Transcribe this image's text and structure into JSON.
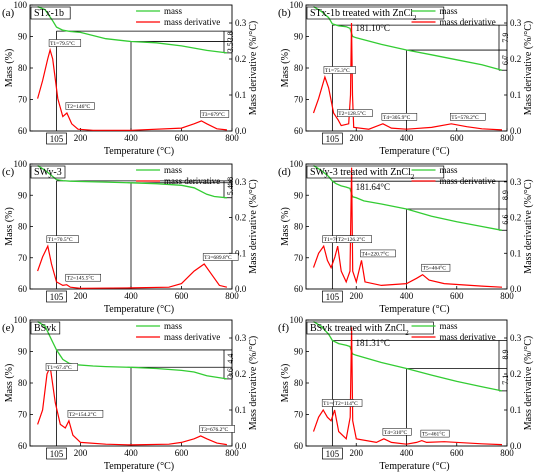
{
  "figure": {
    "x_label": "Temperature (°C)",
    "y_left_label": "Mass (%)",
    "y_right_label": "Mass derivative (%/°C)",
    "colors": {
      "mass": "#33cc33",
      "derivative": "#ff0000",
      "frame": "#000000"
    }
  },
  "chart_data": [
    {
      "id": "a",
      "panel_label": "(a)",
      "sample": "STx-1b",
      "sample_treatment": "",
      "type": "line",
      "legend": [
        "mass",
        "mass derivative"
      ],
      "xlim": [
        0,
        800
      ],
      "x_ticks": [
        200,
        400,
        600,
        800
      ],
      "ylim_left": [
        60,
        100
      ],
      "y_ticks_left": [
        60,
        70,
        80,
        90,
        100
      ],
      "ylim_right": [
        0.0,
        0.35
      ],
      "y_ticks_right": [
        0.0,
        0.1,
        0.2,
        0.3
      ],
      "mass": {
        "x": [
          30,
          60,
          90,
          105,
          130,
          160,
          200,
          300,
          400,
          500,
          600,
          700,
          780
        ],
        "y": [
          99.5,
          98.5,
          95,
          93,
          92,
          91.6,
          91.3,
          89.3,
          88.4,
          88.0,
          87.0,
          85.6,
          84.8
        ]
      },
      "derivative": {
        "x": [
          30,
          50,
          70,
          79.5,
          90,
          110,
          130,
          146,
          165,
          190,
          250,
          400,
          600,
          650,
          679,
          700,
          740,
          780
        ],
        "y": [
          0.09,
          0.14,
          0.2,
          0.225,
          0.2,
          0.09,
          0.04,
          0.05,
          0.02,
          0.005,
          0.002,
          0.002,
          0.008,
          0.02,
          0.028,
          0.02,
          0.006,
          0.003
        ]
      },
      "guides": {
        "x_start": 105,
        "x_mid": 400,
        "y_top": 91.7,
        "y_mid": 88.4,
        "y_bottom": 84.8
      },
      "callouts": [
        "3.8",
        "3.5"
      ],
      "markers": [
        {
          "label": "T1=79.5°C",
          "x": 79.5,
          "y": 0.225
        },
        {
          "label": "T2=146°C",
          "x": 146,
          "y": 0.05
        },
        {
          "label": "T3=679°C",
          "x": 679,
          "y": 0.028
        }
      ],
      "peak_label": "",
      "start_tick": "105"
    },
    {
      "id": "b",
      "panel_label": "(b)",
      "sample": "STx-1b",
      "sample_treatment": " treated with ZnCl",
      "type": "line",
      "legend": [
        "mass",
        "mass derivative"
      ],
      "xlim": [
        0,
        800
      ],
      "x_ticks": [
        200,
        400,
        600,
        800
      ],
      "ylim_left": [
        60,
        100
      ],
      "y_ticks_left": [
        60,
        70,
        80,
        90,
        100
      ],
      "ylim_right": [
        0.0,
        0.35
      ],
      "y_ticks_right": [
        0.0,
        0.1,
        0.2,
        0.3
      ],
      "mass": {
        "x": [
          30,
          60,
          90,
          105,
          130,
          160,
          175,
          181,
          186,
          200,
          300,
          400,
          500,
          600,
          700,
          780
        ],
        "y": [
          99.5,
          98,
          96,
          94,
          93.4,
          93.1,
          92.6,
          91,
          90,
          89.6,
          87.5,
          85.7,
          84.2,
          82.6,
          81,
          79.3
        ]
      },
      "derivative": {
        "x": [
          30,
          50,
          75.3,
          90,
          110,
          128.5,
          140,
          170,
          177,
          181.1,
          185,
          190,
          250,
          305.9,
          340,
          400,
          500,
          578.2,
          640,
          700,
          780
        ],
        "y": [
          0.05,
          0.09,
          0.15,
          0.12,
          0.05,
          0.03,
          0.015,
          0.02,
          0.1,
          0.3,
          0.1,
          0.01,
          0.005,
          0.02,
          0.008,
          0.005,
          0.01,
          0.02,
          0.012,
          0.006,
          0.003
        ]
      },
      "guides": {
        "x_start": 105,
        "x_mid": 400,
        "y_top": 93.6,
        "y_mid": 85.7,
        "y_bottom": 79.3
      },
      "callouts": [
        "7.9",
        "6.7"
      ],
      "markers": [
        {
          "label": "T1=75.3°C",
          "x": 75.3,
          "y": 0.15
        },
        {
          "label": "T2=128.5°C",
          "x": 128.5,
          "y": 0.03
        },
        {
          "label": "T4=305.9°C",
          "x": 305.9,
          "y": 0.02
        },
        {
          "label": "T5=578.2°C",
          "x": 578.2,
          "y": 0.02
        }
      ],
      "peak_label": "181.10°C",
      "peak_x": 181.1,
      "start_tick": "105"
    },
    {
      "id": "c",
      "panel_label": "(c)",
      "sample": "SWy-3",
      "sample_treatment": "",
      "type": "line",
      "legend": [
        "mass",
        "mass derivative"
      ],
      "xlim": [
        0,
        800
      ],
      "x_ticks": [
        200,
        400,
        600,
        800
      ],
      "ylim_left": [
        60,
        100
      ],
      "y_ticks_left": [
        60,
        70,
        80,
        90,
        100
      ],
      "ylim_right": [
        0.0,
        0.35
      ],
      "y_ticks_right": [
        0.0,
        0.1,
        0.2,
        0.3
      ],
      "mass": {
        "x": [
          30,
          60,
          90,
          105,
          130,
          160,
          200,
          300,
          400,
          500,
          600,
          650,
          700,
          730,
          780
        ],
        "y": [
          99.5,
          98,
          96,
          95,
          94.7,
          94.5,
          94.4,
          94.2,
          94,
          93.7,
          93.2,
          92.4,
          90.3,
          89.6,
          89.2
        ]
      },
      "derivative": {
        "x": [
          30,
          50,
          70.5,
          85,
          105,
          130,
          145.5,
          160,
          200,
          400,
          550,
          600,
          650,
          689.8,
          720,
          750,
          780
        ],
        "y": [
          0.05,
          0.09,
          0.12,
          0.07,
          0.02,
          0.01,
          0.012,
          0.005,
          0.002,
          0.003,
          0.005,
          0.015,
          0.05,
          0.07,
          0.04,
          0.01,
          0.005
        ]
      },
      "guides": {
        "x_start": 105,
        "x_mid": 400,
        "y_top": 94.6,
        "y_mid": 94.0,
        "y_bottom": 89.2
      },
      "callouts": [
        "4.8",
        "5.4"
      ],
      "markers": [
        {
          "label": "T1=70.5°C",
          "x": 70.5,
          "y": 0.12
        },
        {
          "label": "T2=145.5°C",
          "x": 145.5,
          "y": 0.012
        },
        {
          "label": "T3=689.8°C",
          "x": 689.8,
          "y": 0.07
        }
      ],
      "peak_label": "",
      "start_tick": "105"
    },
    {
      "id": "d",
      "panel_label": "(d)",
      "sample": "SWy-3",
      "sample_treatment": "  treated with ZnCl",
      "type": "line",
      "legend": [
        "mass",
        "mass derivative"
      ],
      "xlim": [
        0,
        800
      ],
      "x_ticks": [
        200,
        400,
        600,
        800
      ],
      "ylim_left": [
        60,
        100
      ],
      "y_ticks_left": [
        60,
        70,
        80,
        90,
        100
      ],
      "ylim_right": [
        0.0,
        0.35
      ],
      "y_ticks_right": [
        0.0,
        0.1,
        0.2,
        0.3
      ],
      "mass": {
        "x": [
          30,
          60,
          90,
          105,
          120,
          140,
          160,
          175,
          181,
          186,
          200,
          230,
          300,
          400,
          500,
          600,
          700,
          780
        ],
        "y": [
          99.5,
          98,
          96,
          94.5,
          93.7,
          93,
          92.6,
          92.2,
          90.5,
          89.5,
          89.2,
          88.2,
          87.2,
          85.6,
          83.3,
          81.5,
          80,
          78.8
        ]
      },
      "derivative": {
        "x": [
          30,
          50,
          70.3,
          85,
          100,
          115,
          126.2,
          140,
          160,
          175,
          181.64,
          186,
          200,
          220.7,
          235,
          300,
          400,
          440,
          464,
          490,
          550,
          700,
          780
        ],
        "y": [
          0.06,
          0.1,
          0.12,
          0.08,
          0.06,
          0.09,
          0.12,
          0.05,
          0.02,
          0.05,
          0.34,
          0.05,
          0.02,
          0.08,
          0.02,
          0.01,
          0.015,
          0.03,
          0.04,
          0.025,
          0.015,
          0.008,
          0.005
        ]
      },
      "guides": {
        "x_start": 105,
        "x_mid": 400,
        "y_top": 94.5,
        "y_mid": 85.6,
        "y_bottom": 78.8
      },
      "callouts": [
        "8.9",
        "6.6"
      ],
      "markers": [
        {
          "label": "T1=70.3°C",
          "x": 70.3,
          "y": 0.12
        },
        {
          "label": "T2=126.2°C",
          "x": 126.2,
          "y": 0.12
        },
        {
          "label": "T4=220.7°C",
          "x": 220.7,
          "y": 0.08
        },
        {
          "label": "T5=464°C",
          "x": 464,
          "y": 0.04
        }
      ],
      "peak_label": "181.64°C",
      "peak_x": 181.64,
      "start_tick": "105"
    },
    {
      "id": "e",
      "panel_label": "(e)",
      "sample": "BSvk",
      "sample_treatment": "",
      "type": "line",
      "legend": [
        "mass",
        "mass derivative"
      ],
      "xlim": [
        0,
        800
      ],
      "x_ticks": [
        200,
        400,
        600,
        800
      ],
      "ylim_left": [
        60,
        100
      ],
      "y_ticks_left": [
        60,
        70,
        80,
        90,
        100
      ],
      "ylim_right": [
        0.0,
        0.35
      ],
      "y_ticks_right": [
        0.0,
        0.1,
        0.2,
        0.3
      ],
      "mass": {
        "x": [
          30,
          60,
          90,
          105,
          130,
          154,
          180,
          250,
          300,
          400,
          500,
          600,
          650,
          700,
          780
        ],
        "y": [
          99.5,
          98,
          93,
          90.5,
          87.5,
          86.3,
          85.8,
          85.4,
          85.2,
          85,
          84.6,
          84,
          83.5,
          82.3,
          81.3
        ]
      },
      "derivative": {
        "x": [
          30,
          50,
          67.4,
          80,
          100,
          120,
          140,
          154.2,
          170,
          200,
          300,
          400,
          550,
          600,
          650,
          676.2,
          700,
          740,
          780
        ],
        "y": [
          0.06,
          0.1,
          0.2,
          0.22,
          0.12,
          0.06,
          0.05,
          0.07,
          0.03,
          0.01,
          0.005,
          0.003,
          0.005,
          0.01,
          0.02,
          0.028,
          0.02,
          0.008,
          0.004
        ]
      },
      "guides": {
        "x_start": 105,
        "x_mid": 400,
        "y_top": 90.5,
        "y_mid": 85.0,
        "y_bottom": 81.3
      },
      "callouts": [
        "4.4",
        "3.6"
      ],
      "markers": [
        {
          "label": "T1=67.4°C",
          "x": 67.4,
          "y": 0.2
        },
        {
          "label": "T2=154.2°C",
          "x": 154.2,
          "y": 0.07
        },
        {
          "label": "T3=676.2°C",
          "x": 676.2,
          "y": 0.028
        }
      ],
      "peak_label": "",
      "start_tick": "105"
    },
    {
      "id": "f",
      "panel_label": "(f)",
      "sample": "BSvk",
      "sample_treatment": " treated with ZnCl",
      "type": "line",
      "legend": [
        "mass",
        "mass derivative"
      ],
      "xlim": [
        0,
        800
      ],
      "x_ticks": [
        200,
        400,
        600,
        800
      ],
      "ylim_left": [
        60,
        100
      ],
      "y_ticks_left": [
        60,
        70,
        80,
        90,
        100
      ],
      "ylim_right": [
        0.0,
        0.35
      ],
      "y_ticks_right": [
        0.0,
        0.1,
        0.2,
        0.3
      ],
      "mass": {
        "x": [
          30,
          60,
          90,
          105,
          130,
          160,
          175,
          181,
          186,
          200,
          300,
          400,
          500,
          600,
          700,
          780
        ],
        "y": [
          99.5,
          98,
          95.5,
          93.5,
          92.5,
          92,
          91.6,
          90,
          89.2,
          88.8,
          86.5,
          84.6,
          82.5,
          80.5,
          78.8,
          77.5
        ]
      },
      "derivative": {
        "x": [
          30,
          50,
          68.4,
          85,
          100,
          114,
          130,
          160,
          176,
          181.31,
          186,
          200,
          280,
          310,
          340,
          400,
          440,
          461,
          480,
          550,
          700,
          780
        ],
        "y": [
          0.04,
          0.08,
          0.1,
          0.08,
          0.07,
          0.1,
          0.04,
          0.02,
          0.08,
          0.33,
          0.07,
          0.02,
          0.01,
          0.02,
          0.01,
          0.005,
          0.01,
          0.015,
          0.01,
          0.012,
          0.006,
          0.004
        ]
      },
      "guides": {
        "x_start": 105,
        "x_mid": 400,
        "y_top": 93.5,
        "y_mid": 84.6,
        "y_bottom": 77.5
      },
      "callouts": [
        "8.9",
        "7.1"
      ],
      "markers": [
        {
          "label": "T1=68.4°C",
          "x": 68.4,
          "y": 0.1
        },
        {
          "label": "T2=114°C",
          "x": 114,
          "y": 0.1
        },
        {
          "label": "T4=310°C",
          "x": 310,
          "y": 0.02
        },
        {
          "label": "T5=461°C",
          "x": 461,
          "y": 0.015
        }
      ],
      "peak_label": "181.31°C",
      "peak_x": 181.31,
      "start_tick": "105"
    }
  ]
}
